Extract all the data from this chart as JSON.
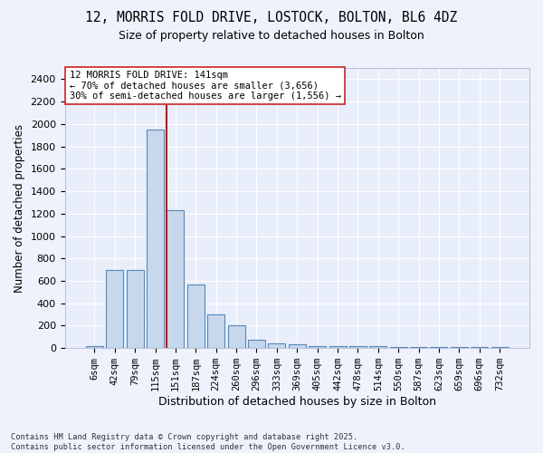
{
  "title_line1": "12, MORRIS FOLD DRIVE, LOSTOCK, BOLTON, BL6 4DZ",
  "title_line2": "Size of property relative to detached houses in Bolton",
  "xlabel": "Distribution of detached houses by size in Bolton",
  "ylabel": "Number of detached properties",
  "bar_labels": [
    "6sqm",
    "42sqm",
    "79sqm",
    "115sqm",
    "151sqm",
    "187sqm",
    "224sqm",
    "260sqm",
    "296sqm",
    "333sqm",
    "369sqm",
    "405sqm",
    "442sqm",
    "478sqm",
    "514sqm",
    "550sqm",
    "587sqm",
    "623sqm",
    "659sqm",
    "696sqm",
    "732sqm"
  ],
  "bar_values": [
    15,
    700,
    700,
    1950,
    1230,
    570,
    300,
    200,
    75,
    40,
    35,
    20,
    15,
    15,
    15,
    10,
    10,
    10,
    10,
    10,
    10
  ],
  "bar_color": "#c8d8ec",
  "bar_edge_color": "#5588bb",
  "vline_color": "#bb1111",
  "annotation_text": "12 MORRIS FOLD DRIVE: 141sqm\n← 70% of detached houses are smaller (3,656)\n30% of semi-detached houses are larger (1,556) →",
  "annotation_box_color": "#ffffff",
  "annotation_box_edge": "#cc2222",
  "ylim": [
    0,
    2500
  ],
  "yticks": [
    0,
    200,
    400,
    600,
    800,
    1000,
    1200,
    1400,
    1600,
    1800,
    2000,
    2200,
    2400
  ],
  "footnote_line1": "Contains HM Land Registry data © Crown copyright and database right 2025.",
  "footnote_line2": "Contains public sector information licensed under the Open Government Licence v3.0.",
  "bg_color": "#eef2fc",
  "plot_bg_color": "#e8eefa",
  "grid_color": "#ffffff",
  "figsize": [
    6.0,
    5.0
  ],
  "dpi": 100,
  "vline_bar_index": 4
}
